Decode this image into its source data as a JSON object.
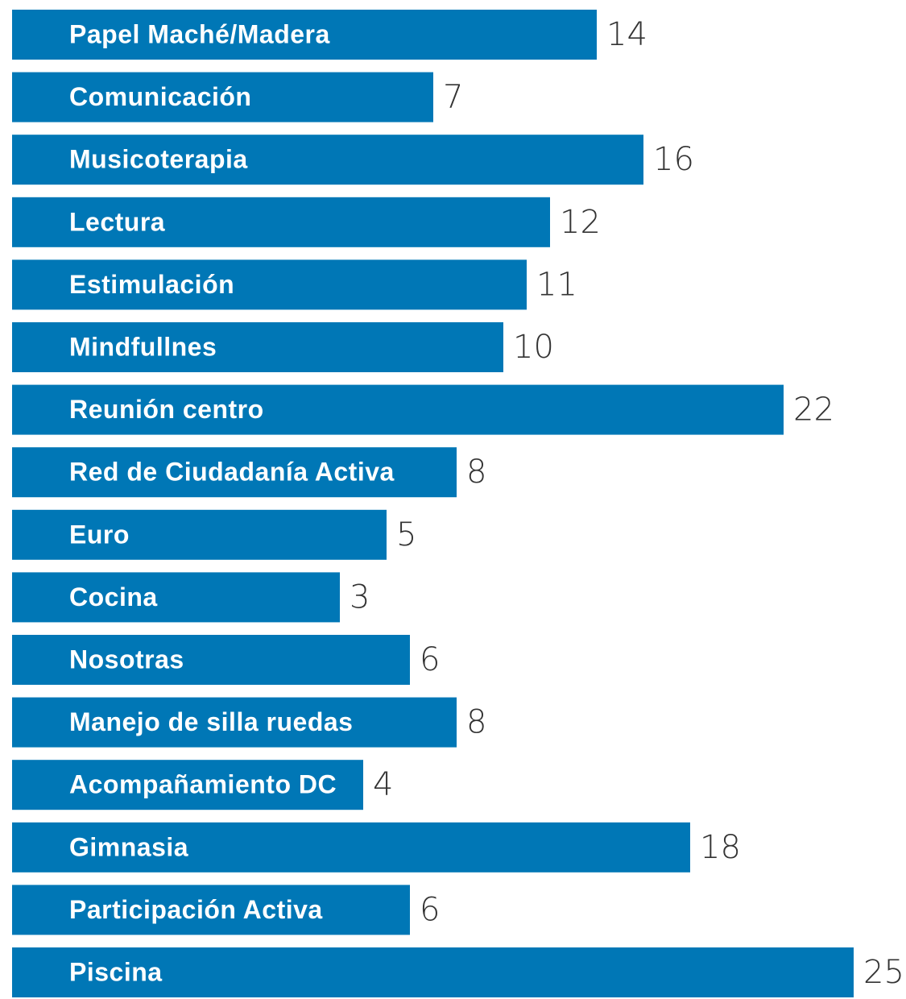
{
  "chart_data": {
    "type": "bar",
    "orientation": "horizontal",
    "color": "#0077b6",
    "categories": [
      "Papel Maché/Madera",
      "Comunicación",
      "Musicoterapia",
      "Lectura",
      "Estimulación",
      "Mindfullnes",
      "Reunión centro",
      "Red de Ciudadanía Activa",
      "Euro",
      "Cocina",
      "Nosotras",
      "Manejo de silla ruedas",
      "Acompañamiento DC",
      "Gimnasia",
      "Participación Activa",
      "Piscina"
    ],
    "values": [
      14,
      7,
      16,
      12,
      11,
      10,
      22,
      8,
      5,
      3,
      6,
      8,
      4,
      18,
      6,
      25
    ]
  }
}
